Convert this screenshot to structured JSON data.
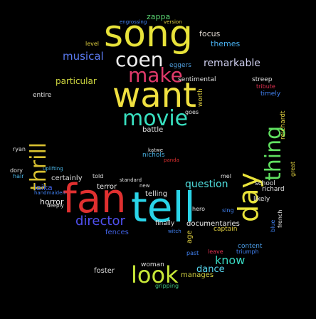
{
  "words": [
    {
      "text": "song",
      "color": "#e8e33a"
    },
    {
      "text": "want",
      "color": "#f0e040"
    },
    {
      "text": "fan",
      "color": "#e03030"
    },
    {
      "text": "tell",
      "color": "#2ad4e8"
    },
    {
      "text": "movie",
      "color": "#38e0c0"
    },
    {
      "text": "coen",
      "color": "#f0f0f0"
    },
    {
      "text": "make",
      "color": "#e03a6a"
    },
    {
      "text": "look",
      "color": "#c8e838"
    },
    {
      "text": "day",
      "color": "#e8e33a"
    },
    {
      "text": "thing",
      "color": "#60e060"
    },
    {
      "text": "thrill",
      "color": "#d8c030"
    },
    {
      "text": "director",
      "color": "#5050f0"
    },
    {
      "text": "musical",
      "color": "#5a7af0"
    },
    {
      "text": "remarkable",
      "color": "#d0d0f0"
    },
    {
      "text": "question",
      "color": "#50e0e0"
    },
    {
      "text": "know",
      "color": "#38d8c0"
    },
    {
      "text": "dance",
      "color": "#58d8f0"
    },
    {
      "text": "zappa",
      "color": "#58d070"
    },
    {
      "text": "focus",
      "color": "#e0d8d0"
    },
    {
      "text": "themes",
      "color": "#48b0f0"
    },
    {
      "text": "particular",
      "color": "#d0d840"
    },
    {
      "text": "battle",
      "color": "#e0e0e0"
    },
    {
      "text": "laika",
      "color": "#4060e0"
    },
    {
      "text": "terror",
      "color": "#f0f0f0"
    },
    {
      "text": "horror",
      "color": "#f0f0f0"
    },
    {
      "text": "certainly",
      "color": "#e0e0e0"
    },
    {
      "text": "fences",
      "color": "#4060e0"
    },
    {
      "text": "telling",
      "color": "#e0e0e0"
    },
    {
      "text": "documentaries",
      "color": "#f0f0f0"
    },
    {
      "text": "captain",
      "color": "#e0d040"
    },
    {
      "text": "content",
      "color": "#4898e0"
    },
    {
      "text": "foster",
      "color": "#e0e0e0"
    },
    {
      "text": "woman",
      "color": "#e0e0e0"
    },
    {
      "text": "manages",
      "color": "#d0d040"
    },
    {
      "text": "gripping",
      "color": "#40c080"
    },
    {
      "text": "school",
      "color": "#e0e0e0"
    },
    {
      "text": "richard",
      "color": "#e0e0e0"
    },
    {
      "text": "likely",
      "color": "#e0e0e0"
    },
    {
      "text": "tribute",
      "color": "#e03050"
    },
    {
      "text": "streep",
      "color": "#e0e0e0"
    },
    {
      "text": "timely",
      "color": "#4080f0"
    },
    {
      "text": "reichardt",
      "color": "#e0d040"
    },
    {
      "text": "sentimental",
      "color": "#e0e0e0"
    },
    {
      "text": "eggers",
      "color": "#50a0e0"
    },
    {
      "text": "entire",
      "color": "#e0e0e0"
    },
    {
      "text": "ryan",
      "color": "#e0e0e0"
    },
    {
      "text": "dory",
      "color": "#e0e0e0"
    },
    {
      "text": "hair",
      "color": "#48b0e0"
    },
    {
      "text": "nichols",
      "color": "#48b0e0"
    },
    {
      "text": "katwe",
      "color": "#e0e0e0"
    },
    {
      "text": "panda",
      "color": "#e03030"
    },
    {
      "text": "age",
      "color": "#e0d040"
    },
    {
      "text": "worth",
      "color": "#e0d040"
    },
    {
      "text": "goes",
      "color": "#e0e0e0"
    },
    {
      "text": "finally",
      "color": "#e0e0e0"
    },
    {
      "text": "past",
      "color": "#4080f0"
    },
    {
      "text": "leave",
      "color": "#e03050"
    },
    {
      "text": "triumph",
      "color": "#4080f0"
    },
    {
      "text": "engrossing",
      "color": "#4080f0"
    },
    {
      "text": "version",
      "color": "#e0d040"
    },
    {
      "text": "level",
      "color": "#e0d040"
    },
    {
      "text": "standard",
      "color": "#e0e0e0"
    },
    {
      "text": "new",
      "color": "#e0e0e0"
    },
    {
      "text": "hero",
      "color": "#e0e0e0"
    },
    {
      "text": "witch",
      "color": "#4080f0"
    },
    {
      "text": "told",
      "color": "#e0e0e0"
    },
    {
      "text": "sing",
      "color": "#4080f0"
    },
    {
      "text": "great",
      "color": "#e0d040"
    },
    {
      "text": "french",
      "color": "#e0e0e0"
    },
    {
      "text": "blue",
      "color": "#4080f0"
    },
    {
      "text": "mel",
      "color": "#e0e0e0"
    },
    {
      "text": "uplifting",
      "color": "#48b0e0"
    },
    {
      "text": "deeply",
      "color": "#e0e0e0"
    },
    {
      "text": "handmaiden",
      "color": "#4080f0"
    }
  ]
}
